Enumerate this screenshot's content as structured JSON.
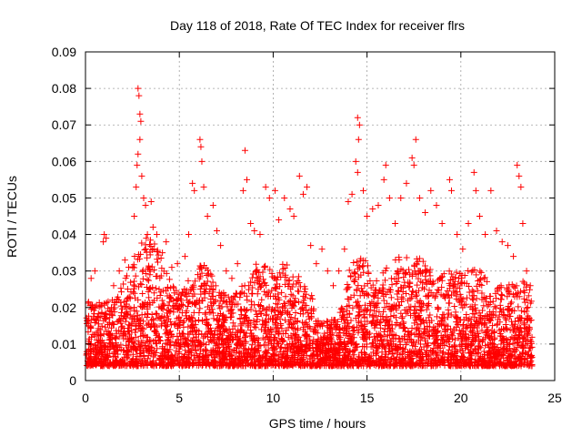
{
  "chart_data": {
    "type": "scatter",
    "title": "Day 118 of 2018, Rate Of TEC Index for receiver flrs",
    "xlabel": "GPS time / hours",
    "ylabel": "ROTI / TECUs",
    "xlim": [
      0,
      25
    ],
    "ylim": [
      0,
      0.09
    ],
    "xticks": [
      0,
      5,
      10,
      15,
      20,
      25
    ],
    "xtick_labels": [
      "0",
      "5",
      "10",
      "15",
      "20",
      "25"
    ],
    "yticks": [
      0,
      0.01,
      0.02,
      0.03,
      0.04,
      0.05,
      0.06,
      0.07,
      0.08,
      0.09
    ],
    "ytick_labels": [
      "0",
      "0.01",
      "0.02",
      "0.03",
      "0.04",
      "0.05",
      "0.06",
      "0.07",
      "0.08",
      "0.09"
    ],
    "grid": true,
    "marker": "+",
    "color": "#ff0000",
    "series": [
      {
        "name": "ROTI",
        "points": [
          [
            2.8,
            0.08
          ],
          [
            2.85,
            0.078
          ],
          [
            2.9,
            0.073
          ],
          [
            2.95,
            0.071
          ],
          [
            2.9,
            0.066
          ],
          [
            2.8,
            0.062
          ],
          [
            2.75,
            0.059
          ],
          [
            3.0,
            0.056
          ],
          [
            2.7,
            0.053
          ],
          [
            3.1,
            0.05
          ],
          [
            2.6,
            0.045
          ],
          [
            3.2,
            0.048
          ],
          [
            3.5,
            0.049
          ],
          [
            3.6,
            0.042
          ],
          [
            3.3,
            0.04
          ],
          [
            3.8,
            0.04
          ],
          [
            4.1,
            0.035
          ],
          [
            4.3,
            0.038
          ],
          [
            4.6,
            0.031
          ],
          [
            4.9,
            0.032
          ],
          [
            1.0,
            0.04
          ],
          [
            0.95,
            0.038
          ],
          [
            1.1,
            0.039
          ],
          [
            0.5,
            0.03
          ],
          [
            0.3,
            0.028
          ],
          [
            1.5,
            0.026
          ],
          [
            1.8,
            0.03
          ],
          [
            2.1,
            0.033
          ],
          [
            2.3,
            0.031
          ],
          [
            6.1,
            0.066
          ],
          [
            6.15,
            0.064
          ],
          [
            6.2,
            0.06
          ],
          [
            5.7,
            0.054
          ],
          [
            5.8,
            0.052
          ],
          [
            6.3,
            0.053
          ],
          [
            6.5,
            0.045
          ],
          [
            6.8,
            0.048
          ],
          [
            7.0,
            0.041
          ],
          [
            7.2,
            0.037
          ],
          [
            5.5,
            0.04
          ],
          [
            5.3,
            0.034
          ],
          [
            7.5,
            0.03
          ],
          [
            7.8,
            0.028
          ],
          [
            8.1,
            0.032
          ],
          [
            8.5,
            0.063
          ],
          [
            8.6,
            0.055
          ],
          [
            8.4,
            0.052
          ],
          [
            8.8,
            0.043
          ],
          [
            9.0,
            0.041
          ],
          [
            9.3,
            0.04
          ],
          [
            9.6,
            0.053
          ],
          [
            9.8,
            0.05
          ],
          [
            10.1,
            0.052
          ],
          [
            10.3,
            0.044
          ],
          [
            10.6,
            0.05
          ],
          [
            10.9,
            0.047
          ],
          [
            11.1,
            0.045
          ],
          [
            11.4,
            0.056
          ],
          [
            11.6,
            0.051
          ],
          [
            11.8,
            0.053
          ],
          [
            12.0,
            0.037
          ],
          [
            12.3,
            0.032
          ],
          [
            12.6,
            0.036
          ],
          [
            12.9,
            0.03
          ],
          [
            13.2,
            0.026
          ],
          [
            13.5,
            0.03
          ],
          [
            13.8,
            0.036
          ],
          [
            14.0,
            0.049
          ],
          [
            14.2,
            0.051
          ],
          [
            14.5,
            0.072
          ],
          [
            14.6,
            0.07
          ],
          [
            14.55,
            0.066
          ],
          [
            14.4,
            0.06
          ],
          [
            14.5,
            0.057
          ],
          [
            14.8,
            0.052
          ],
          [
            15.0,
            0.045
          ],
          [
            15.3,
            0.047
          ],
          [
            15.6,
            0.048
          ],
          [
            15.9,
            0.055
          ],
          [
            16.0,
            0.059
          ],
          [
            16.2,
            0.05
          ],
          [
            16.5,
            0.043
          ],
          [
            16.8,
            0.05
          ],
          [
            17.1,
            0.054
          ],
          [
            17.4,
            0.061
          ],
          [
            17.6,
            0.066
          ],
          [
            17.5,
            0.059
          ],
          [
            17.8,
            0.05
          ],
          [
            18.1,
            0.046
          ],
          [
            18.4,
            0.052
          ],
          [
            18.7,
            0.048
          ],
          [
            19.0,
            0.043
          ],
          [
            19.4,
            0.055
          ],
          [
            19.5,
            0.052
          ],
          [
            19.8,
            0.04
          ],
          [
            20.1,
            0.036
          ],
          [
            20.4,
            0.043
          ],
          [
            20.7,
            0.057
          ],
          [
            20.8,
            0.052
          ],
          [
            21.0,
            0.045
          ],
          [
            21.3,
            0.04
          ],
          [
            21.6,
            0.052
          ],
          [
            21.9,
            0.041
          ],
          [
            22.2,
            0.038
          ],
          [
            22.5,
            0.037
          ],
          [
            22.8,
            0.034
          ],
          [
            23.0,
            0.059
          ],
          [
            23.1,
            0.056
          ],
          [
            23.2,
            0.053
          ],
          [
            23.3,
            0.043
          ],
          [
            23.5,
            0.03
          ],
          [
            23.7,
            0.026
          ]
        ]
      }
    ]
  }
}
